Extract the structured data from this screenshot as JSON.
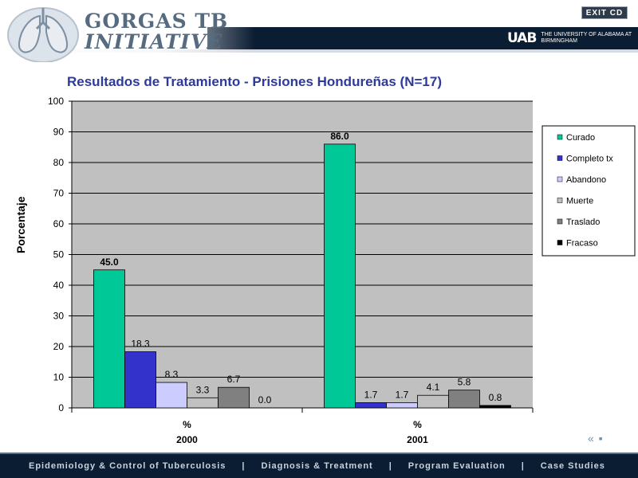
{
  "header": {
    "brand_line1": "GORGAS TB",
    "brand_line2": "INITIATIVE",
    "exit_label": "EXIT CD",
    "uab_mark": "UAB",
    "uab_text": "THE UNIVERSITY OF ALABAMA AT BIRMINGHAM",
    "logo_icon": "lungs-icon"
  },
  "footer": {
    "nav": [
      {
        "label": "Epidemiology & Control of Tuberculosis"
      },
      {
        "label": "Diagnosis & Treatment"
      },
      {
        "label": "Program Evaluation"
      },
      {
        "label": "Case Studies"
      }
    ],
    "separator": "|",
    "prev_icon": "prev-arrows-icon",
    "next_icon": "next-arrows-icon"
  },
  "chart_data": {
    "type": "bar",
    "title": "Resultados de Tratamiento - Prisiones Hondureñas (N=17)",
    "ylabel": "Porcentaje",
    "ylim": [
      0,
      100
    ],
    "yticks": [
      0,
      10,
      20,
      30,
      40,
      50,
      60,
      70,
      80,
      90,
      100
    ],
    "grid": true,
    "legend_placement": "right",
    "categories": [
      {
        "line1": "%",
        "line2": "2000"
      },
      {
        "line1": "%",
        "line2": "2001"
      }
    ],
    "series": [
      {
        "name": "Curado",
        "color": "#00c896",
        "values": [
          45.0,
          86.0
        ],
        "labels": [
          "45.0",
          "86.0"
        ]
      },
      {
        "name": "Completo tx",
        "color": "#3333cc",
        "values": [
          18.3,
          1.7
        ],
        "labels": [
          "18.3",
          "1.7"
        ]
      },
      {
        "name": "Abandono",
        "color": "#ccccff",
        "values": [
          8.3,
          1.7
        ],
        "labels": [
          "8.3",
          "1.7"
        ]
      },
      {
        "name": "Muerte",
        "color": "#c0c0c0",
        "values": [
          3.3,
          4.1
        ],
        "labels": [
          "3.3",
          "4.1"
        ]
      },
      {
        "name": "Traslado",
        "color": "#808080",
        "values": [
          6.7,
          5.8
        ],
        "labels": [
          "6.7",
          "5.8"
        ]
      },
      {
        "name": "Fracaso",
        "color": "#000000",
        "values": [
          0.0,
          0.8
        ],
        "labels": [
          "0.0",
          "0.8"
        ]
      }
    ],
    "plot_bg": "#c0c0c0"
  }
}
